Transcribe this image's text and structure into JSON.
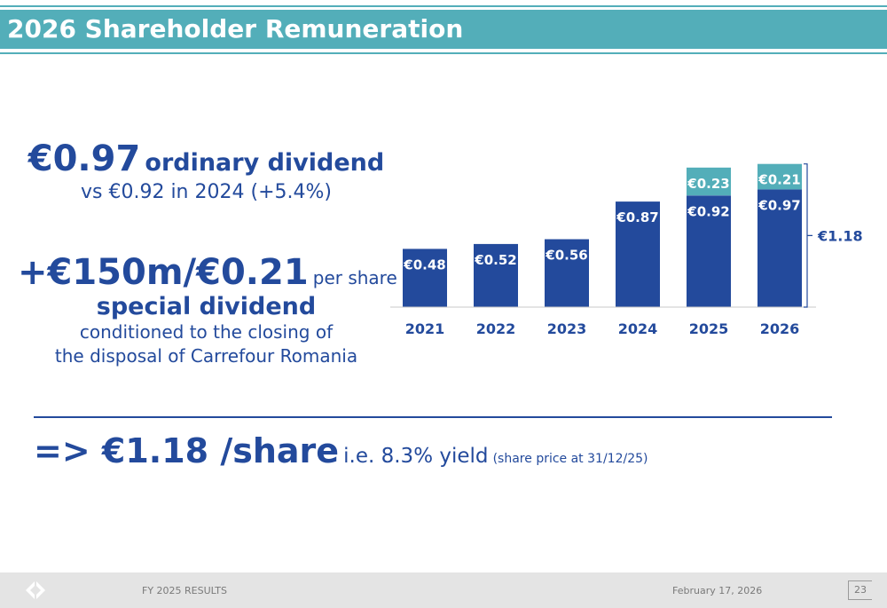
{
  "header": {
    "title": "2026 Shareholder Remuneration"
  },
  "ordinary": {
    "amount": "€0.97",
    "label": "ordinary dividend",
    "comparison": "vs €0.92 in 2024 (+5.4%)"
  },
  "special": {
    "amount": "+€150m/€0.21",
    "per_share": "per share",
    "label": "special dividend",
    "condition_line1": "conditioned to the closing of",
    "condition_line2": "the disposal of Carrefour Romania"
  },
  "summary": {
    "total": "=> €1.18 /share",
    "yield": "i.e. 8.3% yield",
    "note": "(share price at 31/12/25)"
  },
  "footer": {
    "report": "FY 2025 RESULTS",
    "date": "February 17, 2026",
    "page": "23"
  },
  "colors": {
    "ordinary": "#234a9c",
    "special": "#53aeb9",
    "text": "#234a9c"
  },
  "chart_data": {
    "type": "bar",
    "stacked": true,
    "categories": [
      "2021",
      "2022",
      "2023",
      "2024",
      "2025",
      "2026"
    ],
    "series": [
      {
        "key": "ordinary",
        "values": [
          0.48,
          0.52,
          0.56,
          0.87,
          0.92,
          0.97
        ],
        "labels": [
          "€0.48",
          "€0.52",
          "€0.56",
          "€0.87",
          "€0.92",
          "€0.97"
        ]
      },
      {
        "key": "special",
        "values": [
          0,
          0,
          0,
          0,
          0.23,
          0.21
        ],
        "labels": [
          "",
          "",
          "",
          "",
          "€0.23",
          "€0.21"
        ]
      }
    ],
    "total_annotation": {
      "category": "2026",
      "value": 1.18,
      "label": "€1.18"
    },
    "ylim": [
      0,
      1.2
    ],
    "grid": false,
    "legend": "none"
  }
}
